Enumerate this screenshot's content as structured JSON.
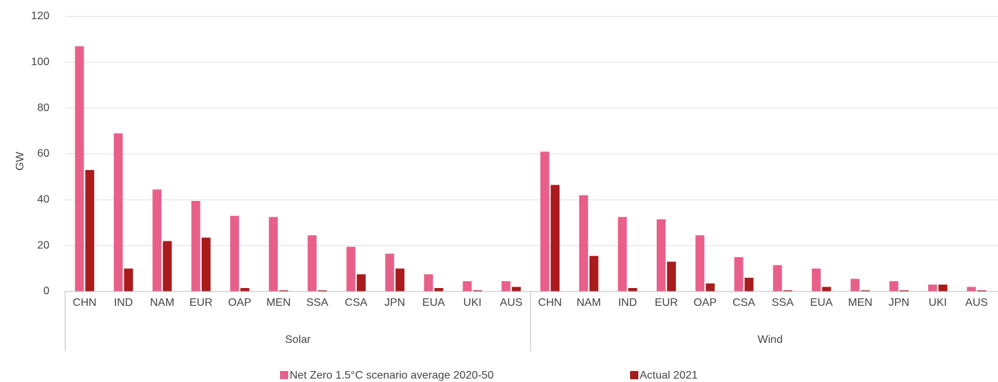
{
  "chart_data": {
    "type": "bar",
    "y_label": "GW",
    "groups": [
      "Solar",
      "Wind"
    ],
    "categories": [
      "CHN",
      "IND",
      "NAM",
      "EUR",
      "OAP",
      "MEN",
      "SSA",
      "CSA",
      "JPN",
      "EUA",
      "UKI",
      "AUS",
      "CHN",
      "NAM",
      "IND",
      "EUR",
      "OAP",
      "CSA",
      "SSA",
      "EUA",
      "MEN",
      "JPN",
      "UKI",
      "AUS"
    ],
    "series": [
      {
        "name": "Net Zero 1.5°C scenario average 2020-50",
        "color": "#e8608a",
        "values": [
          107,
          69,
          44.5,
          39.5,
          33,
          32.5,
          24.5,
          19.5,
          16.5,
          7.5,
          4.5,
          4.5,
          61,
          42,
          32.5,
          31.5,
          24.5,
          15,
          11.5,
          10,
          5.5,
          4.5,
          3,
          2
        ]
      },
      {
        "name": "Actual 2021",
        "color": "#a91b1d",
        "values": [
          53,
          10,
          22,
          23.5,
          1.5,
          0.5,
          0.5,
          7.5,
          10,
          1.5,
          0.5,
          2,
          46.5,
          15.5,
          1.5,
          13,
          3.5,
          6,
          0.5,
          2,
          0.5,
          0.5,
          3,
          0.5
        ]
      }
    ],
    "ylim": [
      0,
      120
    ],
    "yticks": [
      0,
      20,
      40,
      60,
      80,
      100,
      120
    ],
    "grid": true,
    "legend": "bottom"
  }
}
